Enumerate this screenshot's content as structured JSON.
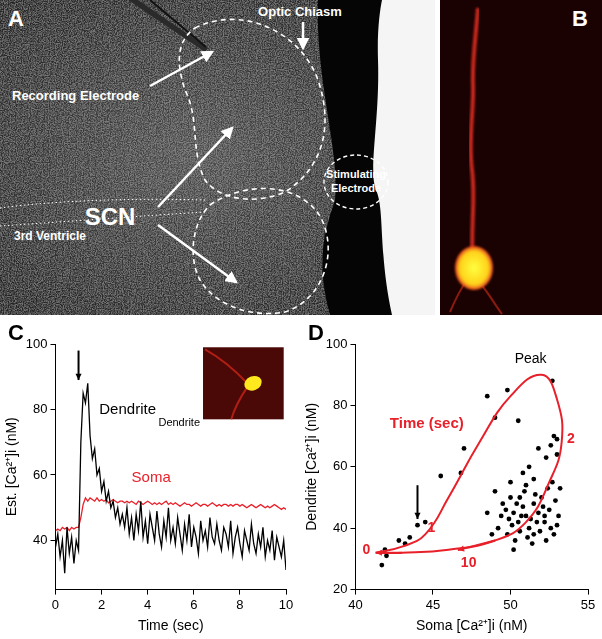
{
  "figure": {
    "panel_a": {
      "letter": "A",
      "labels": {
        "recording_electrode": "Recording Electrode",
        "optic_chiasm": "Optic Chiasm",
        "scn": "SCN",
        "third_ventricle": "3rd Ventricle",
        "stimulating_electrode": "Stimulating Electrode"
      }
    },
    "panel_b": {
      "letter": "B"
    }
  },
  "chart_data": [
    {
      "panel": "C",
      "type": "line",
      "xlabel": "Time (sec)",
      "ylabel": "Est. [Ca²⁺]i (nM)",
      "x": [
        0,
        0.1,
        0.2,
        0.3,
        0.4,
        0.5,
        0.6,
        0.7,
        0.8,
        0.9,
        1,
        1.1,
        1.2,
        1.3,
        1.4,
        1.5,
        1.6,
        1.7,
        1.8,
        1.9,
        2,
        2.1,
        2.2,
        2.3,
        2.4,
        2.5,
        2.6,
        2.7,
        2.8,
        2.9,
        3,
        3.1,
        3.2,
        3.3,
        3.4,
        3.5,
        3.6,
        3.7,
        3.8,
        3.9,
        4,
        4.1,
        4.2,
        4.3,
        4.4,
        4.5,
        4.6,
        4.7,
        4.8,
        4.9,
        5,
        5.1,
        5.2,
        5.3,
        5.4,
        5.5,
        5.6,
        5.7,
        5.8,
        5.9,
        6,
        6.1,
        6.2,
        6.3,
        6.4,
        6.5,
        6.6,
        6.7,
        6.8,
        6.9,
        7,
        7.1,
        7.2,
        7.3,
        7.4,
        7.5,
        7.6,
        7.7,
        7.8,
        7.9,
        8,
        8.1,
        8.2,
        8.3,
        8.4,
        8.5,
        8.6,
        8.7,
        8.8,
        8.9,
        9,
        9.1,
        9.2,
        9.3,
        9.4,
        9.5,
        9.6,
        9.7,
        9.8,
        9.9,
        10
      ],
      "series": [
        {
          "name": "Dendrite",
          "color": "#000000",
          "values": [
            38,
            42,
            35,
            40,
            30,
            44,
            36,
            41,
            33,
            40,
            37,
            70,
            85,
            82,
            88,
            72,
            65,
            68,
            60,
            62,
            55,
            58,
            52,
            55,
            50,
            52,
            47,
            50,
            45,
            48,
            44,
            50,
            42,
            47,
            40,
            48,
            43,
            52,
            41,
            46,
            39,
            48,
            44,
            40,
            49,
            42,
            38,
            46,
            41,
            50,
            40,
            44,
            39,
            47,
            42,
            37,
            45,
            40,
            48,
            38,
            44,
            41,
            36,
            46,
            40,
            43,
            38,
            47,
            41,
            39,
            45,
            40,
            37,
            44,
            42,
            38,
            46,
            36,
            41,
            44,
            39,
            35,
            43,
            40,
            37,
            45,
            39,
            36,
            42,
            38,
            44,
            35,
            40,
            37,
            43,
            34,
            41,
            38,
            35,
            40,
            31
          ]
        },
        {
          "name": "Soma",
          "color": "#e8202a",
          "values": [
            43,
            43.5,
            43,
            44,
            43.5,
            44,
            43,
            44,
            43.5,
            44,
            44,
            47,
            51,
            53,
            52,
            53,
            52.5,
            52,
            53,
            52,
            52.5,
            52,
            52.5,
            51.5,
            52,
            52.5,
            52,
            51.5,
            52,
            52,
            51.5,
            52,
            51.5,
            52,
            51.5,
            51,
            52,
            51.5,
            51,
            51.5,
            52,
            51.5,
            51,
            51.5,
            51,
            51.5,
            51,
            51.5,
            52,
            51,
            51.5,
            51,
            51.5,
            51,
            50.5,
            51,
            51.5,
            51,
            51,
            50.5,
            51,
            51.5,
            51,
            50.5,
            51,
            51,
            50.5,
            51,
            51.5,
            51,
            50.5,
            51,
            50.5,
            51,
            51,
            50.5,
            51,
            50.5,
            51,
            51,
            50.5,
            51,
            50.5,
            50,
            50.5,
            51,
            50.5,
            50,
            50.5,
            51,
            50.5,
            50,
            50.5,
            50,
            50.5,
            51,
            50.5,
            50,
            49.5,
            50,
            49.5
          ]
        }
      ],
      "annotations": {
        "inset": "Dendrite"
      },
      "xlim": [
        0,
        10
      ],
      "xticks": [
        0,
        2,
        4,
        6,
        8,
        10
      ],
      "ylim": [
        25,
        100
      ],
      "yticks": [
        40,
        60,
        80,
        100
      ],
      "grid": false
    },
    {
      "panel": "D",
      "type": "scatter",
      "xlabel": "Soma [Ca²⁺]i (nM)",
      "ylabel": "Dendrite [Ca²⁺]i (nM)",
      "series": [
        {
          "type": "scatter",
          "color": "#000000",
          "marker": "circle",
          "x": [
            41.7,
            42,
            41.9,
            42.8,
            43.2,
            43.5,
            44,
            44.5,
            45.5,
            46.8,
            47,
            48.5,
            49,
            49.8,
            50.5,
            52.7,
            52.8,
            53,
            52.6,
            52.3,
            51.8,
            51.2,
            53,
            50.8,
            51.5,
            49,
            49.5,
            50,
            50.2,
            50.5,
            50.8,
            51,
            51.2,
            51.5,
            51.8,
            52,
            52.2,
            52.5,
            52.8,
            53,
            49.2,
            49.8,
            50.3,
            50.6,
            51.1,
            51.4,
            51.9,
            52.3,
            52.6,
            53.1,
            49.4,
            50.1,
            50.9,
            51.6,
            52.1,
            52.4,
            51.3,
            50.7,
            49.7,
            48.8,
            48.5,
            50,
            51,
            52.9,
            53.2,
            52.7,
            51.7,
            50.4,
            49.9,
            50.2,
            51.5,
            52.2,
            50.6
          ],
          "values": [
            28,
            31,
            33,
            36,
            35,
            37,
            41,
            42,
            57,
            58,
            66,
            83,
            76,
            85,
            75,
            88,
            70,
            69,
            67,
            63,
            66,
            60,
            64,
            58,
            56,
            52,
            48,
            50,
            45,
            42,
            47,
            44,
            40,
            48,
            45,
            50,
            42,
            46,
            38,
            41,
            40,
            38,
            36,
            39,
            37,
            35,
            39,
            36,
            40,
            44,
            44,
            41,
            52,
            51,
            47,
            53,
            43,
            44,
            46,
            38,
            45,
            55,
            54,
            49,
            53,
            55,
            42,
            48,
            43,
            33,
            38,
            44,
            50
          ]
        },
        {
          "type": "line",
          "color": "#e8202a",
          "x": [
            41.3,
            43,
            44.5,
            46,
            48,
            50,
            52,
            53,
            53.3,
            52.5,
            51,
            49,
            46,
            43,
            41.3
          ],
          "values": [
            32,
            34,
            38,
            50,
            68,
            83,
            90,
            82,
            68,
            55,
            42,
            36,
            33,
            32,
            32
          ]
        }
      ],
      "annotations": {
        "peak": "Peak",
        "time_label": "Time (sec)",
        "time_marks": [
          0,
          1,
          2,
          10
        ]
      },
      "xlim": [
        40,
        55
      ],
      "xticks": [
        40,
        45,
        50,
        55
      ],
      "ylim": [
        20,
        100
      ],
      "yticks": [
        20,
        40,
        60,
        80,
        100
      ],
      "grid": false
    }
  ]
}
